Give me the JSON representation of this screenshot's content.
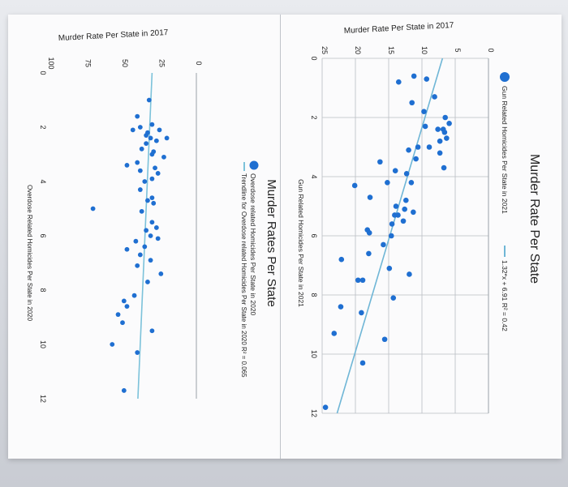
{
  "chart_data": [
    {
      "type": "scatter",
      "title": "Murder Rate Per State",
      "subtitle": "Murder Rate Per State in 2017",
      "xlabel": "Gun Related Homicides Per State in 2021",
      "ylabel": "",
      "xlim": [
        0,
        12
      ],
      "ylim": [
        0,
        25
      ],
      "x_ticks": [
        0,
        2,
        4,
        6,
        8,
        10,
        12
      ],
      "y_ticks": [
        0,
        5,
        10,
        15,
        20,
        25
      ],
      "grid": true,
      "legend_position": "top",
      "color": "#1f6fd1",
      "trend_color": "#6fb6d6",
      "trendline": {
        "slope": 1.32,
        "intercept": 6.91,
        "label": "1.32*x + 6.91 R² = 0.42"
      },
      "series": [
        {
          "name": "Gun Related Homicides Per State in 2021",
          "points": [
            [
              0.6,
              11.2
            ],
            [
              0.7,
              9.3
            ],
            [
              0.8,
              13.5
            ],
            [
              1.3,
              8.1
            ],
            [
              1.5,
              11.5
            ],
            [
              1.8,
              9.7
            ],
            [
              2.0,
              6.5
            ],
            [
              2.2,
              5.9
            ],
            [
              2.3,
              9.5
            ],
            [
              2.4,
              6.8
            ],
            [
              2.4,
              7.6
            ],
            [
              2.5,
              6.6
            ],
            [
              2.7,
              6.3
            ],
            [
              2.8,
              7.3
            ],
            [
              3.0,
              8.9
            ],
            [
              3.0,
              10.6
            ],
            [
              3.1,
              12.0
            ],
            [
              3.2,
              7.3
            ],
            [
              3.4,
              10.9
            ],
            [
              3.5,
              16.3
            ],
            [
              3.7,
              6.7
            ],
            [
              3.8,
              14.0
            ],
            [
              3.9,
              12.3
            ],
            [
              4.2,
              11.6
            ],
            [
              4.2,
              15.2
            ],
            [
              4.3,
              20.1
            ],
            [
              4.7,
              17.8
            ],
            [
              4.8,
              12.4
            ],
            [
              5.0,
              13.9
            ],
            [
              5.1,
              12.6
            ],
            [
              5.2,
              11.3
            ],
            [
              5.3,
              14.1
            ],
            [
              5.3,
              13.6
            ],
            [
              5.5,
              12.8
            ],
            [
              5.6,
              14.5
            ],
            [
              5.8,
              18.2
            ],
            [
              5.9,
              17.9
            ],
            [
              6.0,
              14.6
            ],
            [
              6.3,
              15.8
            ],
            [
              6.6,
              18.0
            ],
            [
              6.8,
              22.1
            ],
            [
              7.1,
              14.9
            ],
            [
              7.3,
              11.9
            ],
            [
              7.5,
              19.6
            ],
            [
              7.5,
              18.9
            ],
            [
              8.1,
              14.3
            ],
            [
              8.4,
              22.2
            ],
            [
              8.6,
              19.1
            ],
            [
              9.3,
              23.2
            ],
            [
              9.5,
              15.6
            ],
            [
              10.3,
              18.9
            ],
            [
              11.8,
              24.5
            ]
          ]
        }
      ]
    },
    {
      "type": "scatter",
      "title": "Murder Rates Per State",
      "subtitle": "Murder Rate Per State in 2017",
      "xlabel": "Overdose Related Homicides Per State in 2020",
      "ylabel": "",
      "xlim": [
        0,
        12
      ],
      "ylim": [
        0,
        100
      ],
      "x_ticks": [
        0,
        2,
        4,
        6,
        8,
        10,
        12
      ],
      "y_ticks": [
        0,
        25,
        50,
        75,
        100
      ],
      "grid": false,
      "legend_position": "top",
      "color": "#1f6fd1",
      "trend_color": "#7cc2da",
      "trendline": {
        "slope": 0.8,
        "intercept": 30,
        "label": "Trendline for Overdose related Homicides Per State in 2020 R² = 0.065"
      },
      "series": [
        {
          "name": "Overdose related Homicides Per State in 2020",
          "points": [
            [
              1.0,
              32
            ],
            [
              1.6,
              40
            ],
            [
              1.9,
              30
            ],
            [
              2.0,
              38
            ],
            [
              2.1,
              25
            ],
            [
              2.1,
              43
            ],
            [
              2.2,
              33
            ],
            [
              2.3,
              34
            ],
            [
              2.4,
              31
            ],
            [
              2.4,
              20
            ],
            [
              2.5,
              27
            ],
            [
              2.6,
              34
            ],
            [
              2.8,
              37
            ],
            [
              2.9,
              29
            ],
            [
              3.0,
              30
            ],
            [
              3.1,
              22
            ],
            [
              3.3,
              40
            ],
            [
              3.4,
              47
            ],
            [
              3.5,
              28
            ],
            [
              3.6,
              38
            ],
            [
              3.7,
              26
            ],
            [
              3.9,
              30
            ],
            [
              4.0,
              35
            ],
            [
              4.3,
              38
            ],
            [
              4.6,
              30
            ],
            [
              4.7,
              33
            ],
            [
              4.8,
              29
            ],
            [
              5.0,
              70
            ],
            [
              5.1,
              37
            ],
            [
              5.5,
              30
            ],
            [
              5.7,
              27
            ],
            [
              5.8,
              34
            ],
            [
              6.0,
              31
            ],
            [
              6.1,
              26
            ],
            [
              6.2,
              41
            ],
            [
              6.4,
              35
            ],
            [
              6.5,
              47
            ],
            [
              6.7,
              38
            ],
            [
              6.9,
              31
            ],
            [
              7.1,
              40
            ],
            [
              7.4,
              24
            ],
            [
              7.7,
              33
            ],
            [
              8.2,
              42
            ],
            [
              8.4,
              49
            ],
            [
              8.6,
              47
            ],
            [
              8.9,
              53
            ],
            [
              9.2,
              50
            ],
            [
              9.5,
              30
            ],
            [
              10.0,
              57
            ],
            [
              10.3,
              40
            ],
            [
              11.7,
              49
            ]
          ]
        }
      ]
    }
  ]
}
